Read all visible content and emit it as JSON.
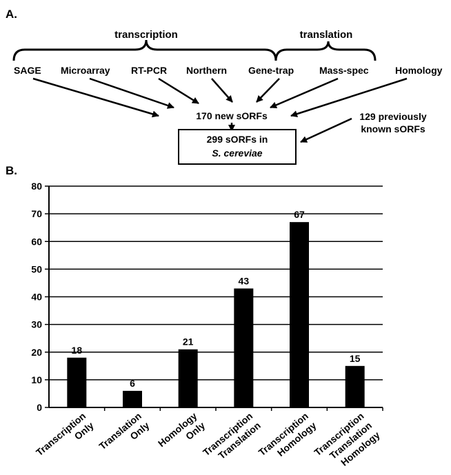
{
  "panel_a": {
    "label": "A.",
    "groups": {
      "transcription": "transcription",
      "translation": "translation"
    },
    "methods": [
      "SAGE",
      "Microarray",
      "RT-PCR",
      "Northern",
      "Gene-trap",
      "Mass-spec",
      "Homology"
    ],
    "new_sorfs": "170 new sORFs",
    "previous_line1": "129 previously",
    "previous_line2": "known sORFs",
    "total_line1": "299 sORFs in",
    "total_line2": "S. cereviae"
  },
  "panel_b": {
    "label": "B."
  },
  "chart_data": {
    "type": "bar",
    "categories": [
      "Transcription Only",
      "Translation Only",
      "Homology Only",
      "Transcription Translation",
      "Transcription Homology",
      "Transcription Translation Homology"
    ],
    "category_lines": [
      [
        "Transcription",
        "Only"
      ],
      [
        "Translation",
        "Only"
      ],
      [
        "Homology",
        "Only"
      ],
      [
        "Transcription",
        "Translation"
      ],
      [
        "Transcription",
        "Homology"
      ],
      [
        "Transcription",
        "Translation",
        "Homology"
      ]
    ],
    "values": [
      18,
      6,
      21,
      43,
      67,
      15
    ],
    "ylim": [
      0,
      80
    ],
    "yticks": [
      0,
      10,
      20,
      30,
      40,
      50,
      60,
      70,
      80
    ],
    "grid": true,
    "bar_color": "#000000"
  }
}
